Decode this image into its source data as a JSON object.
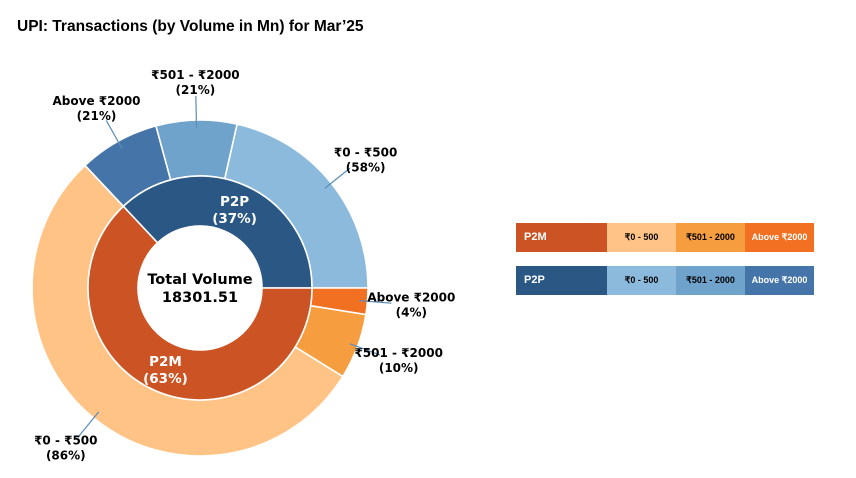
{
  "title": "UPI: Transactions (by Volume in Mn) for Mar’25",
  "chart_data": {
    "type": "pie",
    "subtype": "nested-donut",
    "center_label": {
      "line1": "Total Volume",
      "line2": "18301.51"
    },
    "inner_ring": [
      {
        "name": "P2P",
        "pct": 37,
        "label": "P2P",
        "pct_label": "(37%)",
        "color": "#2a5783"
      },
      {
        "name": "P2M",
        "pct": 63,
        "label": "P2M",
        "pct_label": "(63%)",
        "color": "#cc5424"
      }
    ],
    "outer_ring": [
      {
        "group": "P2P",
        "label": "₹0 - ₹500",
        "pct_label": "(58%)",
        "color": "#8cbadc"
      },
      {
        "group": "P2P",
        "label": "₹501 - ₹2000",
        "pct_label": "(21%)",
        "color": "#6fa3cc"
      },
      {
        "group": "P2P",
        "label": "Above ₹2000",
        "pct_label": "(21%)",
        "color": "#4575a8"
      },
      {
        "group": "P2M",
        "label": "₹0 - ₹500",
        "pct_label": "(86%)",
        "color": "#ffc485"
      },
      {
        "group": "P2M",
        "label": "₹501 - ₹2000",
        "pct_label": "(10%)",
        "color": "#f59d3f"
      },
      {
        "group": "P2M",
        "label": "Above ₹2000",
        "pct_label": "(4%)",
        "color": "#f17022"
      }
    ]
  },
  "legend": {
    "p2m": {
      "head": "P2M",
      "head_color": "#cc5424",
      "cells": [
        {
          "text": "₹0 - 500",
          "color": "#ffc485"
        },
        {
          "text": "₹501 - 2000",
          "color": "#f59d3f"
        },
        {
          "text": "Above ₹2000",
          "color": "#f17022"
        }
      ]
    },
    "p2p": {
      "head": "P2P",
      "head_color": "#2a5783",
      "cells": [
        {
          "text": "₹0 - 500",
          "color": "#8cbadc"
        },
        {
          "text": "₹501 - 2000",
          "color": "#6fa3cc"
        },
        {
          "text": "Above ₹2000",
          "color": "#4575a8"
        }
      ]
    }
  }
}
